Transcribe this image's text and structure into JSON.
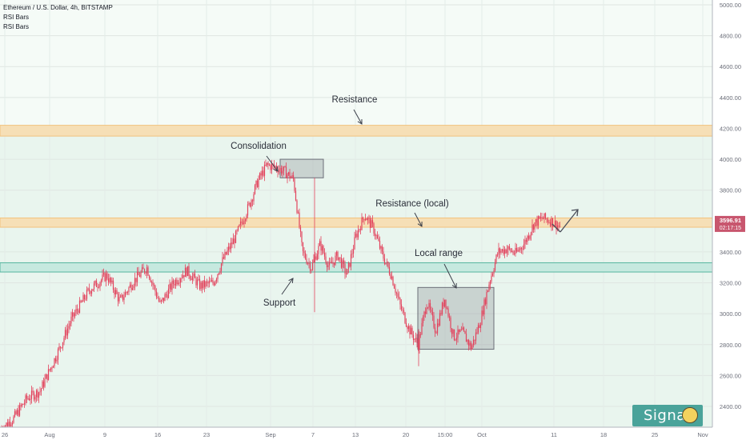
{
  "header": {
    "symbol_line": "Ethereum / U.S. Dollar, 4h, BITSTAMP",
    "indicator_1": "RSI Bars",
    "indicator_2": "RSI Bars"
  },
  "colors": {
    "up_candle": "#e2435d",
    "down_candle": "#e2435d",
    "zone_orange": "#f2c27e",
    "zone_teal": "#55b59f",
    "bg_tint": "#e9f5ee",
    "price_label": "#c8566e"
  },
  "annotations": {
    "resistance": "Resistance",
    "consolidation": "Consolidation",
    "resistance_local": "Resistance (local)",
    "local_range": "Local range",
    "support": "Support"
  },
  "price_tag": {
    "price": "3596.91",
    "countdown": "02:17:15"
  },
  "badge": {
    "label": "Signal",
    "icon": "robot-face-icon"
  },
  "chart_data": {
    "type": "candlestick",
    "title": "Ethereum / U.S. Dollar, 4h, BITSTAMP",
    "ylim": [
      2200,
      5000
    ],
    "y_ticks": [
      "5000.00",
      "4800.00",
      "4600.00",
      "4400.00",
      "4200.00",
      "4000.00",
      "3800.00",
      "3600.00",
      "3400.00",
      "3200.00",
      "3000.00",
      "2800.00",
      "2600.00",
      "2400.00"
    ],
    "x_ticks": [
      "26",
      "Aug",
      "9",
      "16",
      "23",
      "Sep",
      "7",
      "13",
      "20",
      "15:00",
      "Oct",
      "11",
      "18",
      "25",
      "Nov"
    ],
    "last_price": 3596.91,
    "zones": [
      {
        "label": "Resistance",
        "low": 4150,
        "high": 4220
      },
      {
        "label": "Resistance (local)",
        "low": 3560,
        "high": 3620
      },
      {
        "label": "Support",
        "low": 3270,
        "high": 3330
      }
    ],
    "boxes": [
      {
        "label": "Consolidation",
        "x0": 0.18,
        "x1": 0.245,
        "low": 3880,
        "high": 4000
      },
      {
        "label": "Local range",
        "x0": 0.53,
        "x1": 0.635,
        "low": 2770,
        "high": 3170
      }
    ],
    "price_path": [
      [
        0,
        2250
      ],
      [
        0.3,
        2320
      ],
      [
        0.6,
        2450
      ],
      [
        0.9,
        2500
      ],
      [
        1.3,
        2750
      ],
      [
        1.6,
        2960
      ],
      [
        2.0,
        3150
      ],
      [
        2.4,
        3250
      ],
      [
        2.7,
        3080
      ],
      [
        3.0,
        3210
      ],
      [
        3.3,
        3300
      ],
      [
        3.6,
        3060
      ],
      [
        3.9,
        3200
      ],
      [
        4.2,
        3280
      ],
      [
        4.5,
        3180
      ],
      [
        4.8,
        3200
      ],
      [
        5.0,
        3340
      ],
      [
        5.3,
        3500
      ],
      [
        5.6,
        3700
      ],
      [
        5.8,
        3860
      ],
      [
        6.0,
        3960
      ],
      [
        6.2,
        3950
      ],
      [
        6.4,
        3920
      ],
      [
        6.6,
        3870
      ],
      [
        6.8,
        3400
      ],
      [
        7.0,
        3300
      ],
      [
        7.2,
        3450
      ],
      [
        7.4,
        3300
      ],
      [
        7.6,
        3380
      ],
      [
        7.8,
        3250
      ],
      [
        8.0,
        3500
      ],
      [
        8.2,
        3640
      ],
      [
        8.4,
        3550
      ],
      [
        8.6,
        3380
      ],
      [
        8.8,
        3250
      ],
      [
        9.0,
        3050
      ],
      [
        9.2,
        2900
      ],
      [
        9.4,
        2800
      ],
      [
        9.6,
        3080
      ],
      [
        9.8,
        2890
      ],
      [
        10.0,
        3100
      ],
      [
        10.2,
        2850
      ],
      [
        10.4,
        2880
      ],
      [
        10.6,
        2780
      ],
      [
        10.8,
        2950
      ],
      [
        11.0,
        3200
      ],
      [
        11.2,
        3400
      ],
      [
        11.4,
        3420
      ],
      [
        11.6,
        3390
      ],
      [
        11.8,
        3460
      ],
      [
        12.0,
        3580
      ],
      [
        12.2,
        3620
      ],
      [
        12.4,
        3600
      ],
      [
        12.6,
        3560
      ]
    ],
    "grid": true
  }
}
